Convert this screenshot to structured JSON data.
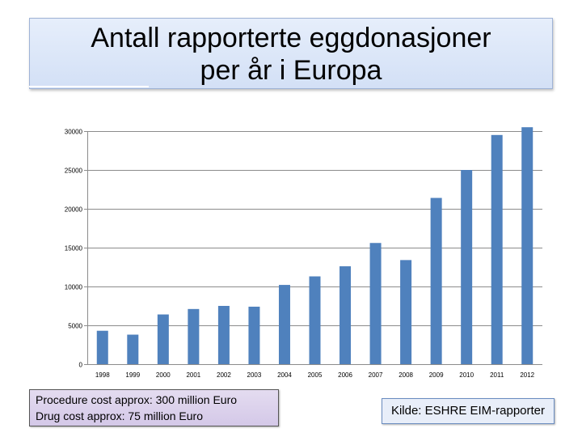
{
  "title": {
    "line1": "Antall rapporterte eggdonasjoner",
    "line2": "per år i Europa"
  },
  "notes": {
    "procedure": "Procedure cost approx: 300 million Euro",
    "drug": "Drug cost approx:  75 million Euro"
  },
  "source": "Kilde: ESHRE EIM-rapporter",
  "colors": {
    "bar": "#4f81bd",
    "grid": "#8c8c8c"
  },
  "chart_data": {
    "type": "bar",
    "title": "Antall rapporterte eggdonasjoner per år i Europa",
    "xlabel": "",
    "ylabel": "",
    "categories": [
      "1998",
      "1999",
      "2000",
      "2001",
      "2002",
      "2003",
      "2004",
      "2005",
      "2006",
      "2007",
      "2008",
      "2009",
      "2010",
      "2011",
      "2012"
    ],
    "values": [
      4300,
      3800,
      6400,
      7100,
      7500,
      7400,
      10200,
      11300,
      12600,
      15600,
      13400,
      21400,
      25000,
      29500,
      30500
    ],
    "ylim": [
      0,
      30000
    ],
    "yticks": [
      "0",
      "5000",
      "10000",
      "15000",
      "20000",
      "25000",
      "30000"
    ],
    "grid": true,
    "legend": "none"
  }
}
